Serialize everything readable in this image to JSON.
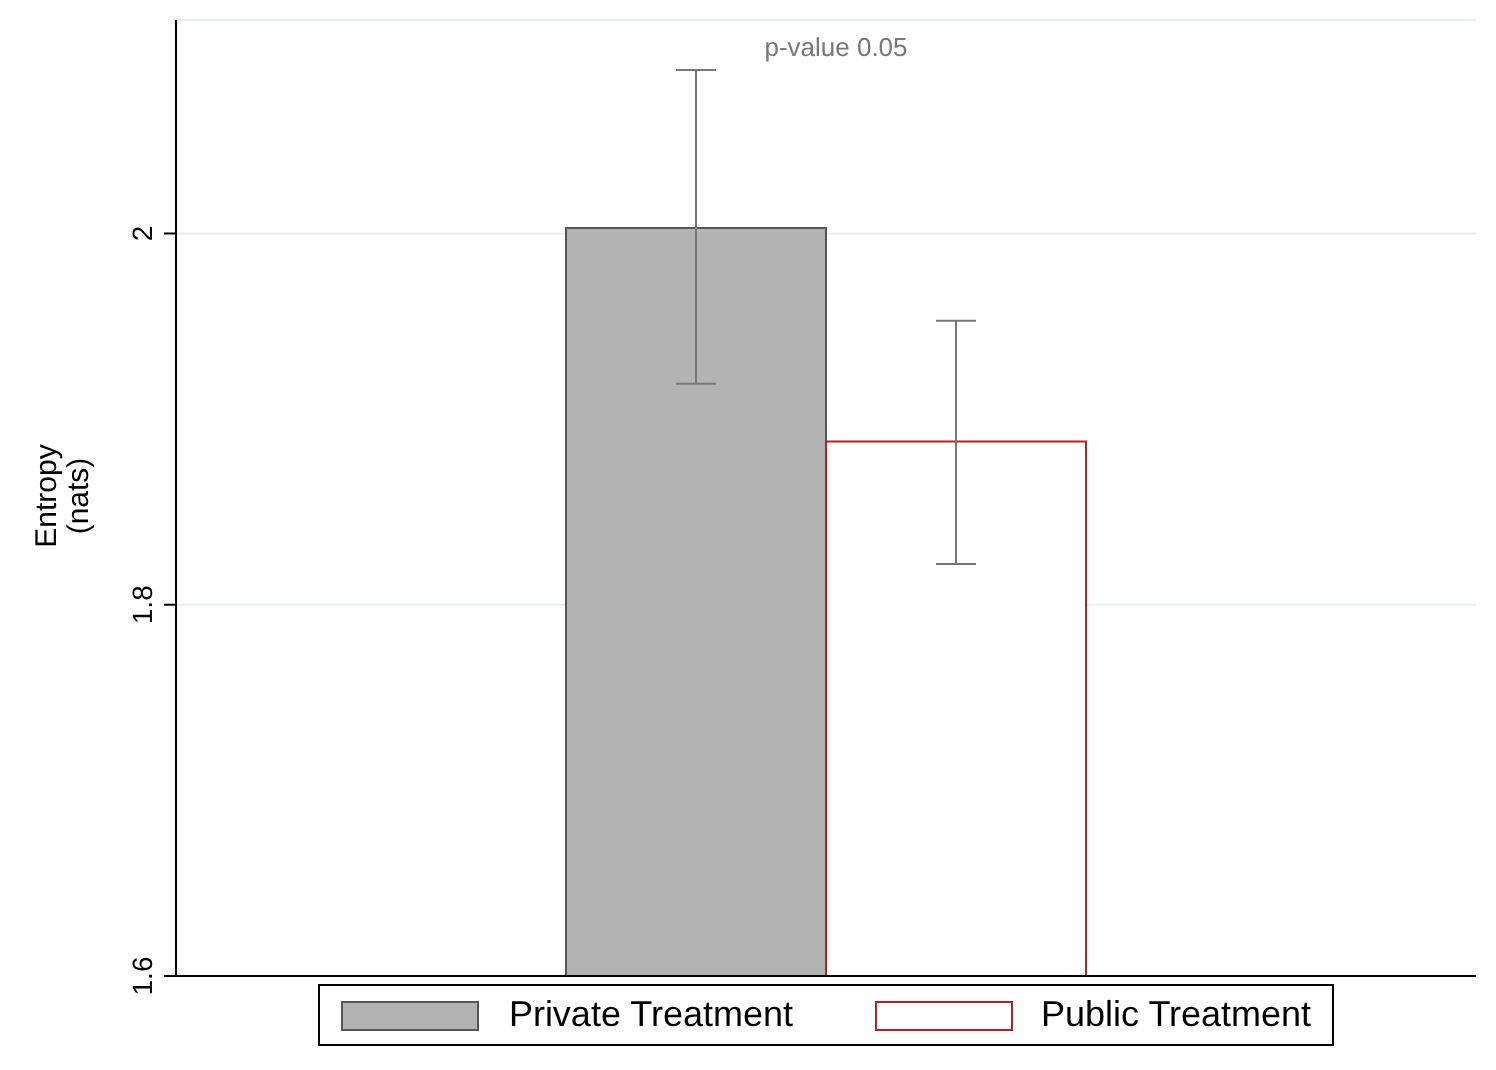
{
  "chart_data": {
    "type": "bar",
    "ylabel": "Entropy\n(nats)",
    "categories": [
      null
    ],
    "series": [
      {
        "name": "Private Treatment",
        "color": "#b3b3b3",
        "values": [
          2.003
        ],
        "errors": [
          [
            1.919,
            2.088
          ]
        ]
      },
      {
        "name": "Public Treatment",
        "color": "#ffffff",
        "values": [
          1.888
        ],
        "errors": [
          [
            1.822,
            1.953
          ]
        ]
      }
    ],
    "ylim": [
      1.6,
      2.115
    ],
    "yticks": [
      1.6,
      1.8,
      2
    ],
    "grid": "y",
    "legend": "bottom",
    "annotations": [
      "p-value 0.05"
    ]
  }
}
